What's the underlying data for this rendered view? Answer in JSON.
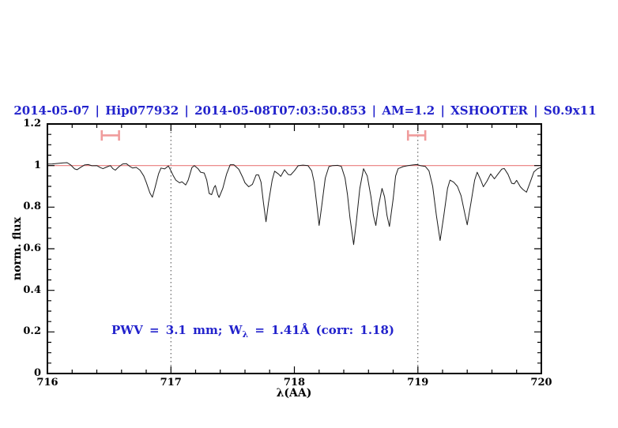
{
  "chart_data": {
    "type": "line",
    "title": "2014-05-07 | Hip077932 | 2014-05-08T07:03:50.853 | AM=1.2 | XSHOOTER | S0.9x11",
    "title_color": "#2222cc",
    "xlabel": "λ(AA)",
    "ylabel": "norm. flux",
    "xlim": [
      716,
      720
    ],
    "ylim": [
      0,
      1.2
    ],
    "grid": "off",
    "legend": "none",
    "x_major_ticks": [
      {
        "v": 716,
        "label": "716"
      },
      {
        "v": 717,
        "label": "717"
      },
      {
        "v": 718,
        "label": "718"
      },
      {
        "v": 719,
        "label": "719"
      },
      {
        "v": 720,
        "label": "720"
      }
    ],
    "x_minor_step": 0.2,
    "y_major_ticks": [
      {
        "v": 0,
        "label": "0"
      },
      {
        "v": 0.2,
        "label": "0.2"
      },
      {
        "v": 0.4,
        "label": "0.4"
      },
      {
        "v": 0.6,
        "label": "0.6"
      },
      {
        "v": 0.8,
        "label": "0.8"
      },
      {
        "v": 1,
        "label": "1"
      },
      {
        "v": 1.2,
        "label": "1.2"
      }
    ],
    "y_minor_step": 0.05,
    "annotation": {
      "prefix": "PWV = 3.1 mm; W",
      "sub": "λ",
      "suffix": " = 1.41Å (corr: 1.18)",
      "color": "#2222cc"
    },
    "vlines": [
      {
        "x": 717,
        "style": "dotted"
      },
      {
        "x": 719,
        "style": "dotted"
      }
    ],
    "range_markers": [
      {
        "name": "telluric-band-1",
        "x1": 716.44,
        "x2": 716.58,
        "y": 1.145,
        "cap": 0.025,
        "color": "#f09c9c"
      },
      {
        "name": "telluric-band-2",
        "x1": 718.92,
        "x2": 719.06,
        "y": 1.145,
        "cap": 0.025,
        "color": "#f09c9c"
      }
    ],
    "series": [
      {
        "name": "continuum-fit",
        "color": "#e97b7b",
        "width": 1.2,
        "points": [
          [
            716.0,
            1.0
          ],
          [
            720.0,
            1.0
          ]
        ]
      },
      {
        "name": "observed-spectrum",
        "color": "#1c1c1c",
        "width": 1.0,
        "points": [
          [
            716.0,
            1.007
          ],
          [
            716.04,
            1.008
          ],
          [
            716.08,
            1.01
          ],
          [
            716.13,
            1.013
          ],
          [
            716.16,
            1.014
          ],
          [
            716.19,
            1.002
          ],
          [
            716.22,
            0.984
          ],
          [
            716.24,
            0.98
          ],
          [
            716.27,
            0.992
          ],
          [
            716.3,
            1.003
          ],
          [
            716.33,
            1.005
          ],
          [
            716.36,
            0.999
          ],
          [
            716.4,
            1.0
          ],
          [
            716.43,
            0.99
          ],
          [
            716.45,
            0.985
          ],
          [
            716.48,
            0.993
          ],
          [
            716.51,
            1.0
          ],
          [
            716.53,
            0.985
          ],
          [
            716.55,
            0.978
          ],
          [
            716.58,
            0.995
          ],
          [
            716.61,
            1.008
          ],
          [
            716.64,
            1.009
          ],
          [
            716.67,
            0.995
          ],
          [
            716.69,
            0.988
          ],
          [
            716.72,
            0.991
          ],
          [
            716.75,
            0.978
          ],
          [
            716.78,
            0.95
          ],
          [
            716.8,
            0.92
          ],
          [
            716.83,
            0.868
          ],
          [
            716.85,
            0.848
          ],
          [
            716.87,
            0.89
          ],
          [
            716.9,
            0.96
          ],
          [
            716.92,
            0.988
          ],
          [
            716.95,
            0.984
          ],
          [
            716.98,
            0.998
          ],
          [
            717.0,
            0.975
          ],
          [
            717.02,
            0.95
          ],
          [
            717.04,
            0.93
          ],
          [
            717.07,
            0.917
          ],
          [
            717.09,
            0.922
          ],
          [
            717.12,
            0.907
          ],
          [
            717.14,
            0.93
          ],
          [
            717.17,
            0.99
          ],
          [
            717.19,
            1.0
          ],
          [
            717.22,
            0.985
          ],
          [
            717.24,
            0.968
          ],
          [
            717.27,
            0.964
          ],
          [
            717.29,
            0.93
          ],
          [
            717.31,
            0.866
          ],
          [
            717.33,
            0.86
          ],
          [
            717.35,
            0.895
          ],
          [
            717.36,
            0.904
          ],
          [
            717.38,
            0.86
          ],
          [
            717.39,
            0.847
          ],
          [
            717.42,
            0.89
          ],
          [
            717.45,
            0.958
          ],
          [
            717.48,
            1.004
          ],
          [
            717.51,
            1.004
          ],
          [
            717.55,
            0.982
          ],
          [
            717.58,
            0.945
          ],
          [
            717.6,
            0.917
          ],
          [
            717.63,
            0.898
          ],
          [
            717.66,
            0.91
          ],
          [
            717.69,
            0.955
          ],
          [
            717.71,
            0.955
          ],
          [
            717.73,
            0.92
          ],
          [
            717.75,
            0.82
          ],
          [
            717.77,
            0.73
          ],
          [
            717.79,
            0.82
          ],
          [
            717.82,
            0.93
          ],
          [
            717.84,
            0.973
          ],
          [
            717.87,
            0.96
          ],
          [
            717.89,
            0.948
          ],
          [
            717.92,
            0.98
          ],
          [
            717.95,
            0.957
          ],
          [
            717.97,
            0.955
          ],
          [
            718.0,
            0.975
          ],
          [
            718.03,
            0.999
          ],
          [
            718.07,
            1.002
          ],
          [
            718.11,
            1.0
          ],
          [
            718.14,
            0.975
          ],
          [
            718.16,
            0.92
          ],
          [
            718.18,
            0.82
          ],
          [
            718.2,
            0.712
          ],
          [
            718.22,
            0.8
          ],
          [
            718.25,
            0.94
          ],
          [
            718.28,
            0.995
          ],
          [
            718.31,
            1.0
          ],
          [
            718.35,
            1.001
          ],
          [
            718.38,
            0.996
          ],
          [
            718.41,
            0.94
          ],
          [
            718.43,
            0.86
          ],
          [
            718.45,
            0.75
          ],
          [
            718.48,
            0.62
          ],
          [
            718.5,
            0.72
          ],
          [
            718.53,
            0.89
          ],
          [
            718.56,
            0.985
          ],
          [
            718.59,
            0.95
          ],
          [
            718.62,
            0.85
          ],
          [
            718.64,
            0.76
          ],
          [
            718.66,
            0.712
          ],
          [
            718.68,
            0.8
          ],
          [
            718.71,
            0.89
          ],
          [
            718.73,
            0.85
          ],
          [
            718.75,
            0.76
          ],
          [
            718.77,
            0.707
          ],
          [
            718.8,
            0.84
          ],
          [
            718.82,
            0.95
          ],
          [
            718.84,
            0.985
          ],
          [
            718.88,
            0.995
          ],
          [
            718.92,
            1.0
          ],
          [
            718.96,
            1.003
          ],
          [
            718.99,
            1.005
          ],
          [
            719.02,
            1.0
          ],
          [
            719.06,
            0.996
          ],
          [
            719.09,
            0.975
          ],
          [
            719.12,
            0.9
          ],
          [
            719.15,
            0.76
          ],
          [
            719.18,
            0.64
          ],
          [
            719.21,
            0.76
          ],
          [
            719.24,
            0.89
          ],
          [
            719.26,
            0.93
          ],
          [
            719.29,
            0.92
          ],
          [
            719.32,
            0.9
          ],
          [
            719.35,
            0.855
          ],
          [
            719.38,
            0.77
          ],
          [
            719.4,
            0.715
          ],
          [
            719.43,
            0.82
          ],
          [
            719.46,
            0.93
          ],
          [
            719.48,
            0.968
          ],
          [
            719.51,
            0.93
          ],
          [
            719.53,
            0.898
          ],
          [
            719.56,
            0.925
          ],
          [
            719.59,
            0.96
          ],
          [
            719.62,
            0.936
          ],
          [
            719.65,
            0.96
          ],
          [
            719.68,
            0.983
          ],
          [
            719.7,
            0.986
          ],
          [
            719.73,
            0.958
          ],
          [
            719.76,
            0.915
          ],
          [
            719.78,
            0.912
          ],
          [
            719.8,
            0.929
          ],
          [
            719.83,
            0.898
          ],
          [
            719.85,
            0.885
          ],
          [
            719.88,
            0.872
          ],
          [
            719.91,
            0.92
          ],
          [
            719.94,
            0.97
          ],
          [
            719.97,
            0.985
          ],
          [
            720.0,
            0.992
          ]
        ]
      }
    ]
  }
}
